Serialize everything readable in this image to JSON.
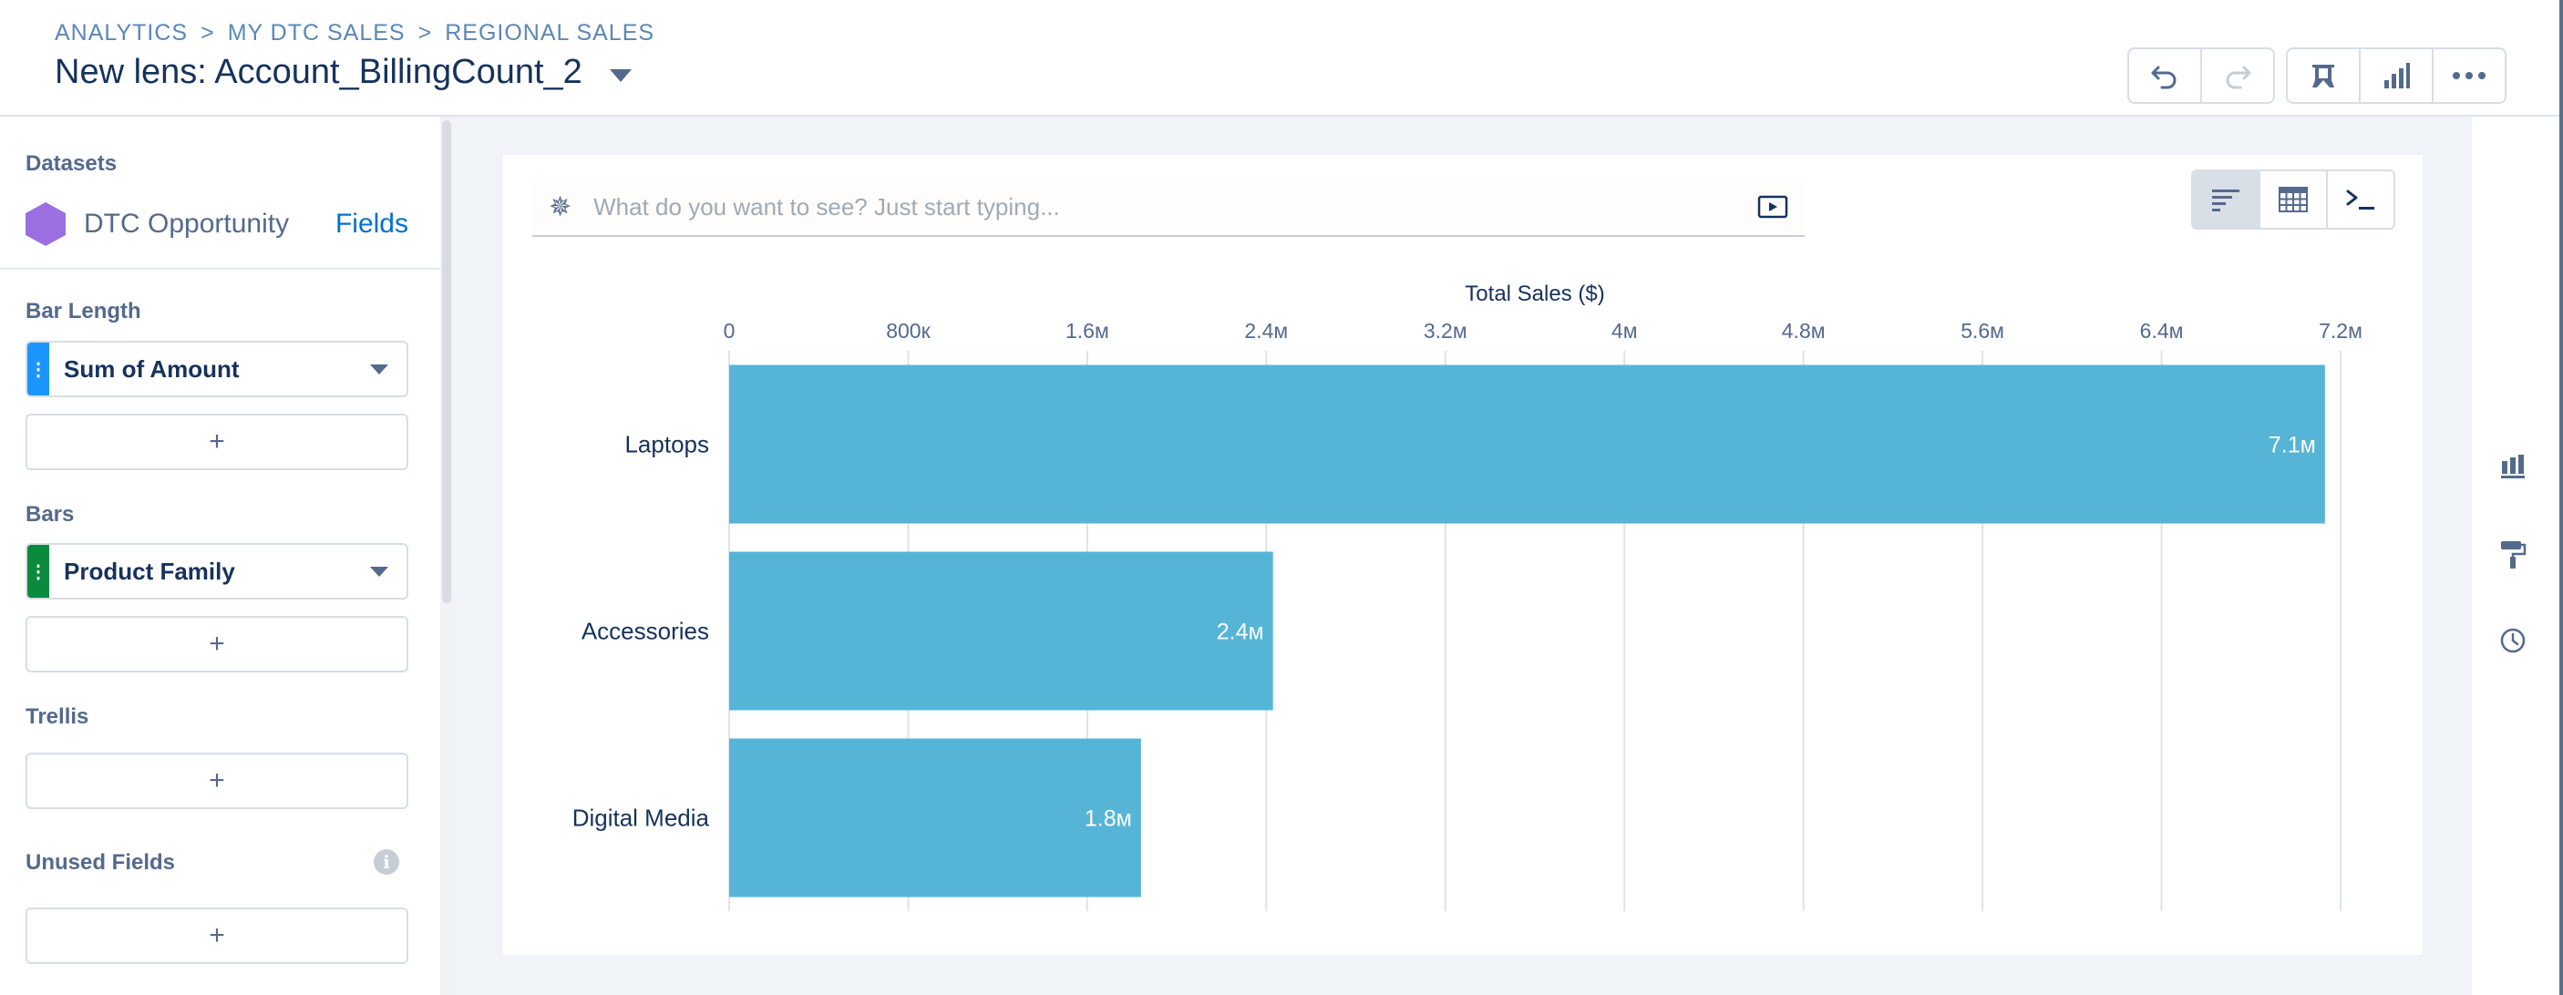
{
  "header": {
    "breadcrumb": [
      "ANALYTICS",
      "MY DTC SALES",
      "REGIONAL SALES"
    ],
    "title": "New lens: Account_BillingCount_2",
    "buttons": [
      "undo-icon",
      "redo-icon",
      "pin-icon",
      "chart-type-icon",
      "more-icon"
    ]
  },
  "left_panel": {
    "datasets_label": "Datasets",
    "dataset_name": "DTC Opportunity",
    "fields_link": "Fields",
    "bar_length_label": "Bar Length",
    "bar_length_field": "Sum of Amount",
    "bars_label": "Bars",
    "bars_field": "Product Family",
    "trellis_label": "Trellis",
    "unused_fields_label": "Unused Fields",
    "add_symbol": "+",
    "info_symbol": "i",
    "handle_symbol": "⋮"
  },
  "query": {
    "placeholder": "What do you want to see? Just start typing..."
  },
  "view_toggle": [
    "chart-view-icon",
    "table-view-icon",
    "query-mode-icon"
  ],
  "right_rail": [
    "chart-properties-icon",
    "format-paint-icon",
    "history-icon"
  ],
  "colors": {
    "bar": "#56b5d7",
    "pill_handle_blue": "#1b96ff",
    "pill_handle_green": "#0b8a3e",
    "dataset_hex": "#9b6fe0"
  },
  "chart_data": {
    "type": "bar",
    "orientation": "horizontal",
    "xlabel": "Total Sales ($)",
    "ylabel": "",
    "xlim": [
      0,
      7200000
    ],
    "ticks": [
      "0",
      "800к",
      "1.6м",
      "2.4м",
      "3.2м",
      "4м",
      "4.8м",
      "5.6м",
      "6.4м",
      "7.2м"
    ],
    "categories": [
      "Laptops",
      "Accessories",
      "Digital Media"
    ],
    "values": [
      7130000,
      2430000,
      1840000
    ],
    "data_labels": [
      "7.1м",
      "2.4м",
      "1.8м"
    ],
    "grid": true
  }
}
